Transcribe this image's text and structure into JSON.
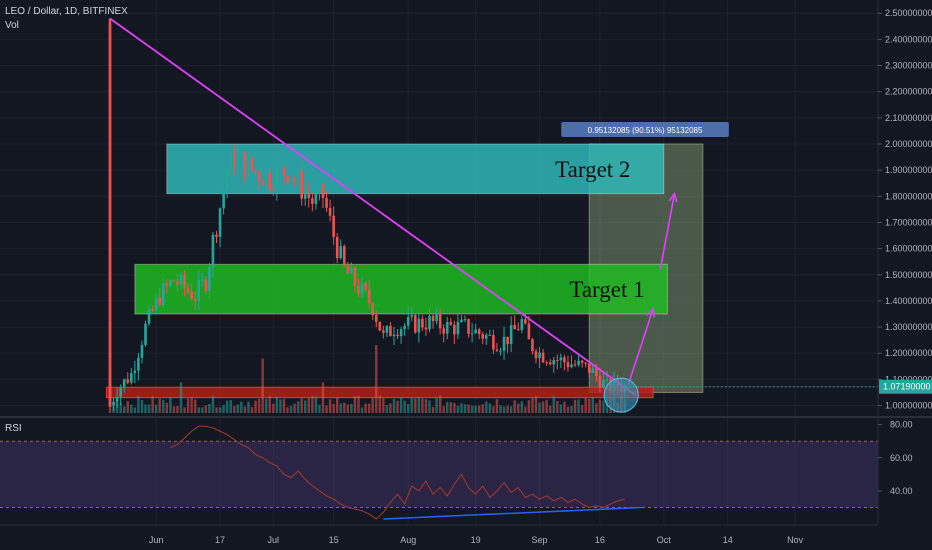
{
  "header": {
    "symbol": "LEO / Dollar, 1D, BITFINEX",
    "volume_label": "Vol"
  },
  "rsi_label": "RSI",
  "colors": {
    "background": "#131722",
    "up": "#26a69a",
    "down": "#ef5350",
    "trendline": "#e040fb",
    "target_1": "#1fae21",
    "target_2": "#2fbcbc",
    "support": "#b71c1c",
    "rsi_band": "#7e57c2",
    "rsi_line": "#a83a2a",
    "price_label": "#26a69a",
    "measure_label": "#4d6ea8"
  },
  "chart_data": [
    {
      "type": "candlestick",
      "symbol": "LEO / Dollar",
      "interval": "1D",
      "exchange": "BITFINEX",
      "y_axis_ticks": [
        "2.50000000",
        "2.40000000",
        "2.30000000",
        "2.20000000",
        "2.10000000",
        "2.00000000",
        "1.90000000",
        "1.80000000",
        "1.70000000",
        "1.60000000",
        "1.50000000",
        "1.40000000",
        "1.30000000",
        "1.20000000",
        "1.10000000",
        "1.00000000"
      ],
      "ylim": [
        0.96,
        2.52
      ],
      "x_axis_ticks": [
        "Jun",
        "17",
        "Jul",
        "15",
        "Aug",
        "19",
        "Sep",
        "16",
        "Oct",
        "14",
        "Nov"
      ],
      "current_price": "1.07190000",
      "current_price_value": 1.0719,
      "price_path": [
        {
          "day": 0,
          "price": 1.0
        },
        {
          "day": 2,
          "price": 1.06
        },
        {
          "day": 6,
          "price": 1.12
        },
        {
          "day": 10,
          "price": 1.3
        },
        {
          "day": 14,
          "price": 1.42
        },
        {
          "day": 18,
          "price": 1.48
        },
        {
          "day": 21,
          "price": 1.45
        },
        {
          "day": 24,
          "price": 1.42
        },
        {
          "day": 27,
          "price": 1.48
        },
        {
          "day": 29,
          "price": 1.63
        },
        {
          "day": 31,
          "price": 1.76
        },
        {
          "day": 33,
          "price": 1.9
        },
        {
          "day": 35,
          "price": 1.95
        },
        {
          "day": 40,
          "price": 1.9
        },
        {
          "day": 45,
          "price": 1.87
        },
        {
          "day": 50,
          "price": 1.9
        },
        {
          "day": 53,
          "price": 1.85
        },
        {
          "day": 57,
          "price": 1.78
        },
        {
          "day": 60,
          "price": 1.8
        },
        {
          "day": 63,
          "price": 1.65
        },
        {
          "day": 66,
          "price": 1.52
        },
        {
          "day": 70,
          "price": 1.45
        },
        {
          "day": 74,
          "price": 1.38
        },
        {
          "day": 77,
          "price": 1.26
        },
        {
          "day": 80,
          "price": 1.3
        },
        {
          "day": 85,
          "price": 1.31
        },
        {
          "day": 90,
          "price": 1.32
        },
        {
          "day": 95,
          "price": 1.3
        },
        {
          "day": 100,
          "price": 1.3
        },
        {
          "day": 105,
          "price": 1.27
        },
        {
          "day": 110,
          "price": 1.24
        },
        {
          "day": 113,
          "price": 1.27
        },
        {
          "day": 116,
          "price": 1.32
        },
        {
          "day": 118,
          "price": 1.24
        },
        {
          "day": 121,
          "price": 1.2
        },
        {
          "day": 125,
          "price": 1.18
        },
        {
          "day": 130,
          "price": 1.16
        },
        {
          "day": 135,
          "price": 1.14
        },
        {
          "day": 138,
          "price": 1.1
        },
        {
          "day": 140,
          "price": 1.07
        },
        {
          "day": 143,
          "price": 1.08
        },
        {
          "day": 145,
          "price": 1.07
        }
      ],
      "initial_spike_high": 2.48,
      "volume_spikes": [
        {
          "day": 0,
          "rel": 0.55
        },
        {
          "day": 43,
          "rel": 0.8
        },
        {
          "day": 75,
          "rel": 1.0
        },
        {
          "day": 20,
          "rel": 0.45
        },
        {
          "day": 60,
          "rel": 0.45
        }
      ],
      "zones": [
        {
          "label": "Target 2",
          "from_day": 16,
          "to_day": 156,
          "low": 1.81,
          "high": 2.0
        },
        {
          "label": "Target 1",
          "from_day": 7,
          "to_day": 157,
          "low": 1.35,
          "high": 1.54
        },
        {
          "label": "",
          "from_day": -1,
          "to_day": 153,
          "low": 1.03,
          "high": 1.07
        }
      ],
      "trendline": {
        "from_day": 0,
        "from_price": 2.48,
        "to_day": 148,
        "to_price": 1.04
      },
      "projection_arrows": [
        {
          "from_day": 146,
          "from_price": 1.08,
          "to_day": 153,
          "to_price": 1.37
        },
        {
          "from_day": 155,
          "from_price": 1.52,
          "to_day": 159,
          "to_price": 1.81
        }
      ],
      "measure": {
        "label": "0.95132085 (90.51%) 95132085",
        "from_day": 135,
        "to_day": 167,
        "low": 1.05,
        "high": 2.0
      }
    },
    {
      "type": "line",
      "name": "RSI",
      "y_axis_ticks": [
        "80.00",
        "60.00",
        "40.00"
      ],
      "ylim": [
        20,
        84
      ],
      "band": [
        30,
        70
      ],
      "values": [
        {
          "day": 17,
          "value": 66
        },
        {
          "day": 19,
          "value": 68
        },
        {
          "day": 21,
          "value": 72
        },
        {
          "day": 23,
          "value": 76
        },
        {
          "day": 25,
          "value": 79
        },
        {
          "day": 27,
          "value": 79
        },
        {
          "day": 29,
          "value": 78
        },
        {
          "day": 31,
          "value": 76
        },
        {
          "day": 33,
          "value": 74
        },
        {
          "day": 35,
          "value": 71
        },
        {
          "day": 37,
          "value": 68
        },
        {
          "day": 39,
          "value": 66
        },
        {
          "day": 41,
          "value": 62
        },
        {
          "day": 43,
          "value": 60
        },
        {
          "day": 45,
          "value": 57
        },
        {
          "day": 47,
          "value": 55
        },
        {
          "day": 49,
          "value": 50
        },
        {
          "day": 51,
          "value": 48
        },
        {
          "day": 53,
          "value": 52
        },
        {
          "day": 55,
          "value": 47
        },
        {
          "day": 57,
          "value": 43
        },
        {
          "day": 59,
          "value": 40
        },
        {
          "day": 61,
          "value": 37
        },
        {
          "day": 63,
          "value": 35
        },
        {
          "day": 65,
          "value": 32
        },
        {
          "day": 67,
          "value": 30
        },
        {
          "day": 69,
          "value": 29
        },
        {
          "day": 71,
          "value": 28
        },
        {
          "day": 73,
          "value": 26
        },
        {
          "day": 75,
          "value": 23
        },
        {
          "day": 77,
          "value": 27
        },
        {
          "day": 79,
          "value": 33
        },
        {
          "day": 81,
          "value": 38
        },
        {
          "day": 83,
          "value": 32
        },
        {
          "day": 85,
          "value": 43
        },
        {
          "day": 87,
          "value": 40
        },
        {
          "day": 89,
          "value": 46
        },
        {
          "day": 91,
          "value": 38
        },
        {
          "day": 93,
          "value": 42
        },
        {
          "day": 95,
          "value": 37
        },
        {
          "day": 97,
          "value": 44
        },
        {
          "day": 99,
          "value": 50
        },
        {
          "day": 101,
          "value": 42
        },
        {
          "day": 103,
          "value": 38
        },
        {
          "day": 105,
          "value": 43
        },
        {
          "day": 107,
          "value": 36
        },
        {
          "day": 109,
          "value": 40
        },
        {
          "day": 111,
          "value": 45
        },
        {
          "day": 113,
          "value": 39
        },
        {
          "day": 115,
          "value": 42
        },
        {
          "day": 117,
          "value": 36
        },
        {
          "day": 119,
          "value": 38
        },
        {
          "day": 121,
          "value": 35
        },
        {
          "day": 123,
          "value": 37
        },
        {
          "day": 125,
          "value": 34
        },
        {
          "day": 127,
          "value": 36
        },
        {
          "day": 129,
          "value": 33
        },
        {
          "day": 131,
          "value": 35
        },
        {
          "day": 133,
          "value": 32
        },
        {
          "day": 135,
          "value": 30
        },
        {
          "day": 137,
          "value": 31
        },
        {
          "day": 139,
          "value": 30
        },
        {
          "day": 141,
          "value": 32
        },
        {
          "day": 143,
          "value": 34
        },
        {
          "day": 145,
          "value": 35
        }
      ],
      "divergence_line": {
        "from_day": 77,
        "from_value": 23,
        "to_day": 150,
        "to_value": 30
      }
    }
  ]
}
